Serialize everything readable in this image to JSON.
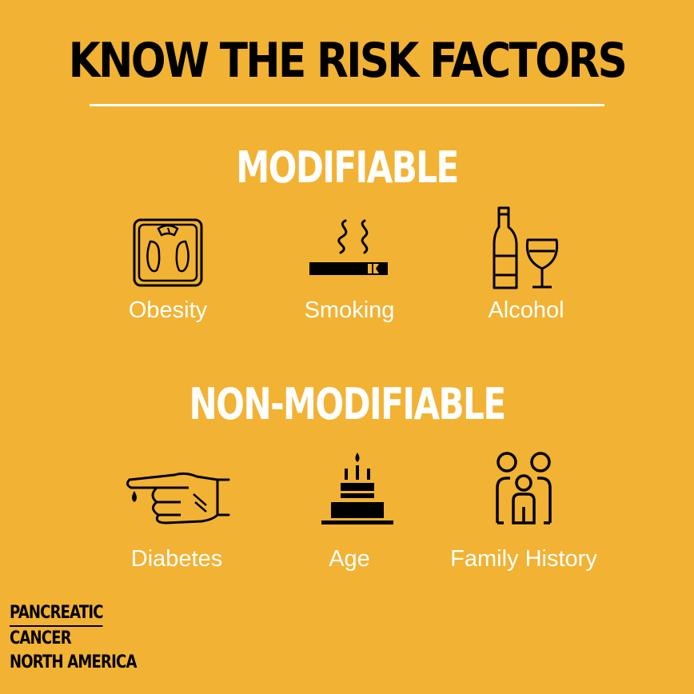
{
  "title": "KNOW THE RISK FACTORS",
  "modifiable": {
    "heading": "MODIFIABLE",
    "items": [
      {
        "label": "Obesity",
        "icon": "bathroom-scale-icon"
      },
      {
        "label": "Smoking",
        "icon": "cigarette-icon"
      },
      {
        "label": "Alcohol",
        "icon": "wine-bottle-glass-icon"
      }
    ]
  },
  "non_modifiable": {
    "heading": "NON-MODIFIABLE",
    "items": [
      {
        "label": "Diabetes",
        "icon": "finger-blood-drop-icon"
      },
      {
        "label": "Age",
        "icon": "birthday-cake-icon"
      },
      {
        "label": "Family History",
        "icon": "family-icon"
      }
    ]
  },
  "brand": {
    "line1": "PANCREATIC",
    "line2": "CANCER",
    "line3": "NORTH AMERICA"
  },
  "colors": {
    "background": "#F2B233",
    "accent": "#FFFFFF",
    "ink": "#000000"
  }
}
